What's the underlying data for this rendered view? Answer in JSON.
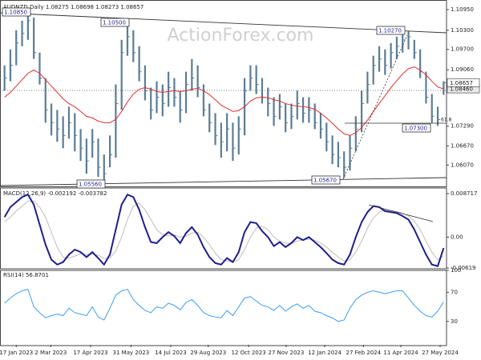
{
  "chart_data": [
    {
      "type": "ohlc",
      "title": "AUDNZD,Daily 1.08275 1.08698 1.08273 1.08657",
      "watermark": "ActionForex.com",
      "color": "#5b7d95",
      "high": [
        1.092,
        1.097,
        1.103,
        1.106,
        1.1085,
        1.107,
        1.096,
        1.088,
        1.08,
        1.078,
        1.076,
        1.079,
        1.077,
        1.072,
        1.069,
        1.072,
        1.069,
        1.064,
        1.07,
        1.086,
        1.1,
        1.105,
        1.103,
        1.098,
        1.092,
        1.085,
        1.087,
        1.086,
        1.09,
        1.088,
        1.084,
        1.09,
        1.094,
        1.092,
        1.086,
        1.08,
        1.077,
        1.074,
        1.077,
        1.074,
        1.076,
        1.088,
        1.092,
        1.092,
        1.088,
        1.085,
        1.082,
        1.083,
        1.08,
        1.08,
        1.084,
        1.082,
        1.082,
        1.08,
        1.077,
        1.074,
        1.07,
        1.068,
        1.065,
        1.07,
        1.076,
        1.084,
        1.09,
        1.095,
        1.098,
        1.097,
        1.099,
        1.101,
        1.102,
        1.1027,
        1.1,
        1.097,
        1.09,
        1.083,
        1.079,
        1.08698
      ],
      "low": [
        1.084,
        1.087,
        1.092,
        1.098,
        1.1,
        1.094,
        1.086,
        1.074,
        1.07,
        1.068,
        1.066,
        1.069,
        1.065,
        1.062,
        1.058,
        1.063,
        1.057,
        1.0556,
        1.06,
        1.063,
        1.078,
        1.095,
        1.093,
        1.087,
        1.081,
        1.075,
        1.077,
        1.076,
        1.079,
        1.079,
        1.074,
        1.077,
        1.084,
        1.082,
        1.076,
        1.071,
        1.067,
        1.063,
        1.065,
        1.062,
        1.064,
        1.07,
        1.084,
        1.083,
        1.08,
        1.076,
        1.073,
        1.075,
        1.071,
        1.072,
        1.075,
        1.074,
        1.074,
        1.072,
        1.069,
        1.065,
        1.061,
        1.06,
        1.0567,
        1.059,
        1.065,
        1.071,
        1.08,
        1.086,
        1.09,
        1.089,
        1.091,
        1.094,
        1.096,
        1.097,
        1.094,
        1.088,
        1.08,
        1.074,
        1.073,
        1.08273
      ],
      "close": [
        1.088,
        1.092,
        1.099,
        1.102,
        1.106,
        1.096,
        1.088,
        1.078,
        1.074,
        1.072,
        1.07,
        1.074,
        1.07,
        1.066,
        1.062,
        1.068,
        1.06,
        1.058,
        1.064,
        1.08,
        1.096,
        1.101,
        1.096,
        1.09,
        1.084,
        1.078,
        1.082,
        1.08,
        1.085,
        1.082,
        1.078,
        1.086,
        1.088,
        1.085,
        1.078,
        1.074,
        1.07,
        1.068,
        1.072,
        1.066,
        1.072,
        1.084,
        1.088,
        1.086,
        1.082,
        1.08,
        1.076,
        1.079,
        1.074,
        1.076,
        1.08,
        1.077,
        1.078,
        1.074,
        1.072,
        1.068,
        1.064,
        1.063,
        1.06,
        1.066,
        1.072,
        1.08,
        1.086,
        1.092,
        1.094,
        1.092,
        1.096,
        1.098,
        1.1,
        1.101,
        1.096,
        1.09,
        1.082,
        1.076,
        1.075,
        1.08657
      ],
      "ma": {
        "color": "#e03030",
        "values": [
          1.082,
          1.0835,
          1.0855,
          1.0875,
          1.0895,
          1.0905,
          1.0895,
          1.0875,
          1.0855,
          1.0835,
          1.0815,
          1.08,
          1.079,
          1.0775,
          1.076,
          1.0755,
          1.0745,
          1.074,
          1.074,
          1.075,
          1.0775,
          1.0805,
          1.083,
          1.0845,
          1.085,
          1.0845,
          1.0838,
          1.0835,
          1.0838,
          1.084,
          1.0838,
          1.084,
          1.0845,
          1.0848,
          1.084,
          1.0828,
          1.0812,
          1.0795,
          1.0785,
          1.0775,
          1.0778,
          1.079,
          1.0808,
          1.0818,
          1.082,
          1.0818,
          1.0812,
          1.0808,
          1.08,
          1.0795,
          1.0792,
          1.079,
          1.0788,
          1.0782,
          1.077,
          1.0755,
          1.0738,
          1.072,
          1.0705,
          1.07,
          1.0708,
          1.0725,
          1.0748,
          1.0775,
          1.08,
          1.0825,
          1.085,
          1.0872,
          1.0893,
          1.091,
          1.0915,
          1.0905,
          1.089,
          1.087,
          1.0852,
          1.0846
        ]
      },
      "xlim": [
        0,
        76
      ],
      "ylim": [
        1.0535,
        1.112
      ],
      "yticks": [
        {
          "value": 1.1095,
          "label": "1.10950"
        },
        {
          "value": 1.103,
          "label": "1.10300"
        },
        {
          "value": 1.097,
          "label": "1.09700"
        },
        {
          "value": 1.0906,
          "label": "1.09060"
        },
        {
          "value": 1.0729,
          "label": "1.07290"
        },
        {
          "value": 1.0667,
          "label": "1.06670"
        },
        {
          "value": 1.0607,
          "label": "1.06070"
        }
      ],
      "price_marker": {
        "value": 1.08657,
        "label": "1.08657"
      },
      "ma_marker": {
        "value": 1.0846,
        "label": "1.08460"
      },
      "annotations": [
        "1.10850",
        "1.10500",
        "1.10270",
        "1.05560",
        "1.05670",
        "1.07300",
        "61.8"
      ]
    },
    {
      "type": "line",
      "title": "MACD(12,26,9) -0.002192 -0.003782",
      "series": [
        {
          "color": "#1e1e8c",
          "values": [
            0.004,
            0.006,
            0.007,
            0.008,
            0.0085,
            0.0065,
            0.0025,
            -0.0015,
            -0.0045,
            -0.0055,
            -0.005,
            -0.0035,
            -0.0025,
            -0.003,
            -0.004,
            -0.003,
            -0.0042,
            -0.0055,
            -0.0035,
            0.0015,
            0.0065,
            0.0085,
            0.008,
            0.0055,
            0.002,
            -0.001,
            -0.0012,
            0.0,
            0.001,
            0.0002,
            -0.0012,
            0.0008,
            0.002,
            0.0005,
            -0.002,
            -0.004,
            -0.0052,
            -0.0055,
            -0.0042,
            -0.005,
            -0.003,
            0.001,
            0.003,
            0.0028,
            0.0012,
            0.0,
            -0.0018,
            -0.001,
            -0.002,
            -0.0012,
            0.0,
            -0.0006,
            0.0,
            -0.001,
            -0.002,
            -0.0032,
            -0.0045,
            -0.0052,
            -0.0055,
            -0.0035,
            0.0,
            0.003,
            0.005,
            0.0062,
            0.006,
            0.0052,
            0.005,
            0.0048,
            0.0042,
            0.0035,
            0.0015,
            -0.001,
            -0.0035,
            -0.0055,
            -0.0058,
            -0.002192
          ]
        },
        {
          "color": "#bdbdbd",
          "values": [
            0.003,
            0.004,
            0.0052,
            0.0062,
            0.0072,
            0.0072,
            0.006,
            0.004,
            0.001,
            -0.002,
            -0.004,
            -0.0042,
            -0.0038,
            -0.0033,
            -0.0035,
            -0.0034,
            -0.0036,
            -0.0043,
            -0.0042,
            -0.0028,
            0.0,
            0.0035,
            0.0062,
            0.0068,
            0.0055,
            0.0035,
            0.0015,
            0.0005,
            0.0003,
            0.0004,
            0.0,
            0.0002,
            0.0008,
            0.001,
            0.0,
            -0.0015,
            -0.0032,
            -0.0045,
            -0.0048,
            -0.005,
            -0.0045,
            -0.0025,
            0.0,
            0.0018,
            0.0022,
            0.0015,
            0.0,
            -0.0008,
            -0.0012,
            -0.0013,
            -0.0008,
            -0.0006,
            -0.0004,
            -0.0006,
            -0.0012,
            -0.002,
            -0.003,
            -0.004,
            -0.0048,
            -0.0045,
            -0.003,
            -0.0008,
            0.0018,
            0.0038,
            0.005,
            0.0054,
            0.0053,
            0.0051,
            0.0048,
            0.0042,
            0.0032,
            0.0015,
            -0.0008,
            -0.003,
            -0.0045,
            -0.003782
          ]
        }
      ],
      "xlim": [
        0,
        76
      ],
      "ylim": [
        -0.0065,
        0.00982
      ],
      "yticks": [
        0.008717,
        {
          "value": 0,
          "label": "0.00"
        },
        -0.00619
      ]
    },
    {
      "type": "line",
      "title": "RSI(14) 56.8701",
      "series": [
        {
          "color": "#3d9df0",
          "values": [
            55,
            62,
            68,
            72,
            74,
            50,
            42,
            35,
            38,
            40,
            38,
            48,
            42,
            40,
            38,
            50,
            36,
            32,
            48,
            66,
            72,
            74,
            60,
            52,
            45,
            42,
            50,
            48,
            55,
            52,
            46,
            56,
            60,
            52,
            42,
            38,
            36,
            35,
            45,
            38,
            50,
            62,
            64,
            58,
            52,
            50,
            45,
            52,
            44,
            50,
            54,
            48,
            52,
            44,
            42,
            38,
            35,
            30,
            32,
            48,
            60,
            66,
            70,
            72,
            70,
            68,
            70,
            72,
            72,
            62,
            52,
            44,
            38,
            36,
            44,
            56.8701
          ]
        }
      ],
      "xlim": [
        0,
        76
      ],
      "ylim": [
        -2,
        101
      ],
      "yticks": [
        100,
        70,
        30
      ],
      "xticks": [
        {
          "value": 2.5,
          "label": "17 Jan 2023"
        },
        {
          "value": 8.4,
          "label": "2 Mar 2023"
        },
        {
          "value": 15.2,
          "label": "17 Apr 2023"
        },
        {
          "value": 22.1,
          "label": "31 May 2023"
        },
        {
          "value": 28.9,
          "label": "14 Jul 2023"
        },
        {
          "value": 35.3,
          "label": "29 Aug 2023"
        },
        {
          "value": 42.2,
          "label": "12 Oct 2023"
        },
        {
          "value": 48.6,
          "label": "27 Nov 2023"
        },
        {
          "value": 55.2,
          "label": "12 Jan 2024"
        },
        {
          "value": 61.8,
          "label": "27 Feb 2024"
        },
        {
          "value": 68.2,
          "label": "11 Apr 2024"
        },
        {
          "value": 74.9,
          "label": "27 May 2024"
        }
      ]
    }
  ]
}
